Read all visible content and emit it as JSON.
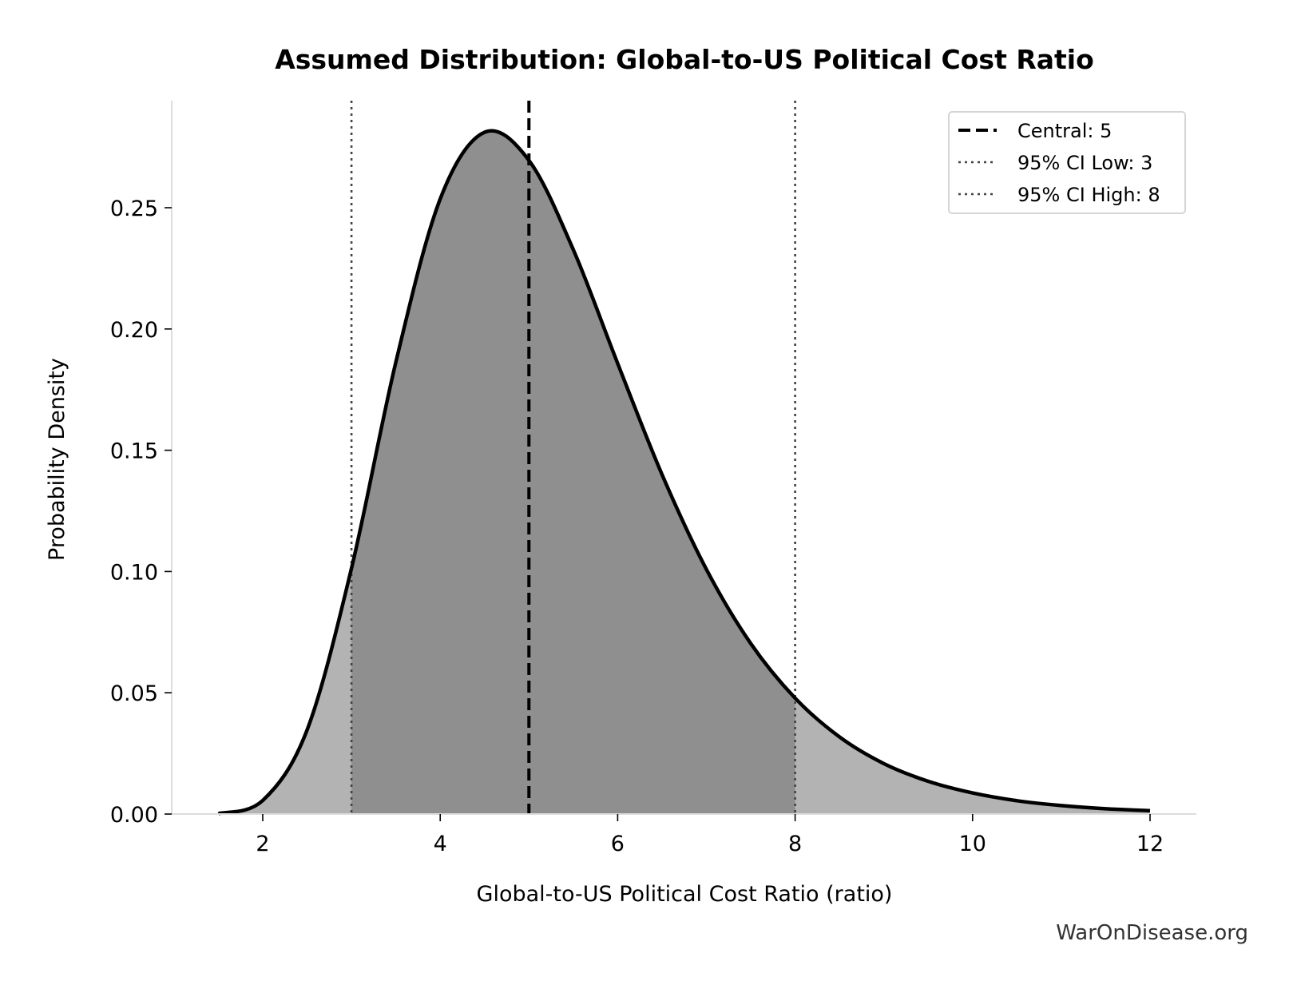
{
  "chart_data": {
    "type": "area",
    "title": "Assumed Distribution: Global-to-US Political Cost Ratio",
    "xlabel": "Global-to-US Political Cost Ratio (ratio)",
    "ylabel": "Probability Density",
    "xlim": [
      1,
      12.5
    ],
    "ylim": [
      0,
      0.295
    ],
    "xticks": [
      2,
      4,
      6,
      8,
      10,
      12
    ],
    "yticks": [
      "0.00",
      "0.05",
      "0.10",
      "0.15",
      "0.20",
      "0.25"
    ],
    "grid": false,
    "legend_placement": "top-right",
    "x": [
      1.5,
      2,
      2.5,
      3,
      3.5,
      4,
      4.5,
      5,
      5.5,
      6,
      6.5,
      7,
      7.5,
      8,
      8.5,
      9,
      9.5,
      10,
      10.5,
      11,
      11.5,
      12
    ],
    "y": [
      0.0002,
      0.0056,
      0.0347,
      0.1013,
      0.1863,
      0.2536,
      0.2811,
      0.2695,
      0.2327,
      0.1858,
      0.14,
      0.1009,
      0.0703,
      0.0478,
      0.0318,
      0.0208,
      0.0135,
      0.0087,
      0.0055,
      0.0035,
      0.0022,
      0.0014
    ],
    "shaded_interval": [
      3,
      8
    ],
    "reference_lines": [
      {
        "label": "Central: 5",
        "x": 5,
        "style": "dashed",
        "color": "#000000"
      },
      {
        "label": "95% CI Low: 3",
        "x": 3,
        "style": "dotted",
        "color": "#444444"
      },
      {
        "label": "95% CI High: 8",
        "x": 8,
        "style": "dotted",
        "color": "#444444"
      }
    ],
    "colors": {
      "curve": "#000000",
      "fill_outer": "#b3b3b3",
      "fill_inner": "#8f8f8f"
    }
  },
  "watermark": "WarOnDisease.org"
}
